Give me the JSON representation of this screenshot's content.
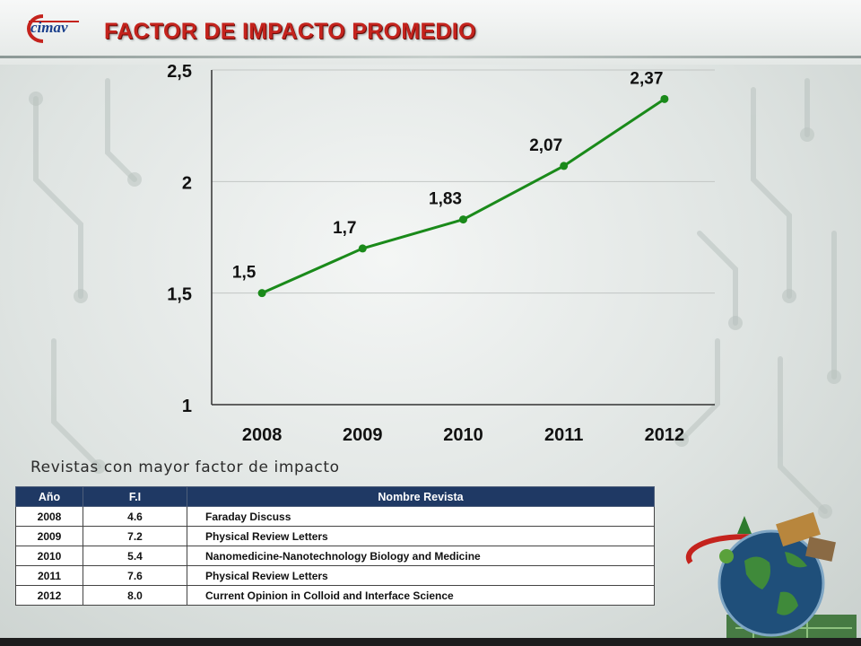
{
  "header": {
    "logo_text": "cimav",
    "title": "FACTOR DE IMPACTO PROMEDIO"
  },
  "chart_data": {
    "type": "line",
    "title": "",
    "xlabel": "",
    "ylabel": "",
    "categories": [
      "2008",
      "2009",
      "2010",
      "2011",
      "2012"
    ],
    "values": [
      1.5,
      1.7,
      1.83,
      2.07,
      2.37
    ],
    "value_labels": [
      "1,5",
      "1,7",
      "1,83",
      "2,07",
      "2,37"
    ],
    "ylim": [
      1,
      2.5
    ],
    "yticks": [
      1,
      1.5,
      2,
      2.5
    ],
    "ytick_labels": [
      "1",
      "1,5",
      "2",
      "2,5"
    ],
    "grid": true,
    "legend": "none",
    "line_color": "#1a8a1a"
  },
  "table_section": {
    "subtitle": "Revistas con mayor factor de impacto",
    "columns": [
      "Año",
      "F.I",
      "Nombre Revista"
    ],
    "rows": [
      [
        "2008",
        "4.6",
        "Faraday Discuss"
      ],
      [
        "2009",
        "7.2",
        "Physical Review Letters"
      ],
      [
        "2010",
        "5.4",
        "Nanomedicine-Nanotechnology  Biology and Medicine"
      ],
      [
        "2011",
        "7.6",
        "Physical Review Letters"
      ],
      [
        "2012",
        "8.0",
        "Current Opinion in Colloid and Interface Science"
      ]
    ]
  },
  "colors": {
    "title_red": "#c4231d",
    "table_header": "#1f3964"
  }
}
